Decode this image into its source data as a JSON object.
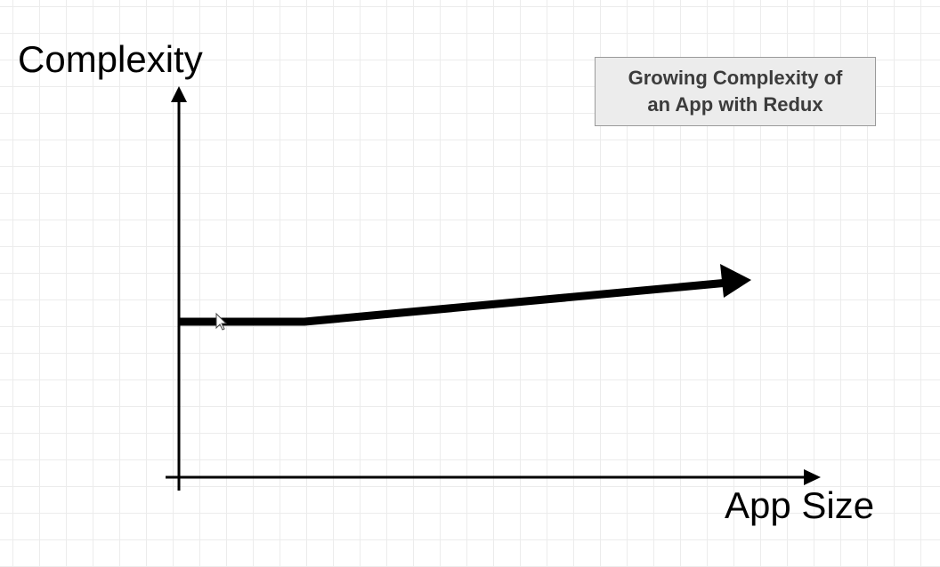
{
  "axes": {
    "y_label": "Complexity",
    "x_label": "App Size"
  },
  "title_box": {
    "line1": "Growing Complexity of",
    "line2": "an App with Redux"
  },
  "colors": {
    "grid": "#ececec",
    "line": "#000000",
    "title_box_fill": "#ececec",
    "title_box_border": "#9a9a9a",
    "title_text": "#3c3c3c"
  },
  "icons": {
    "cursor": "mouse-pointer-icon"
  }
}
